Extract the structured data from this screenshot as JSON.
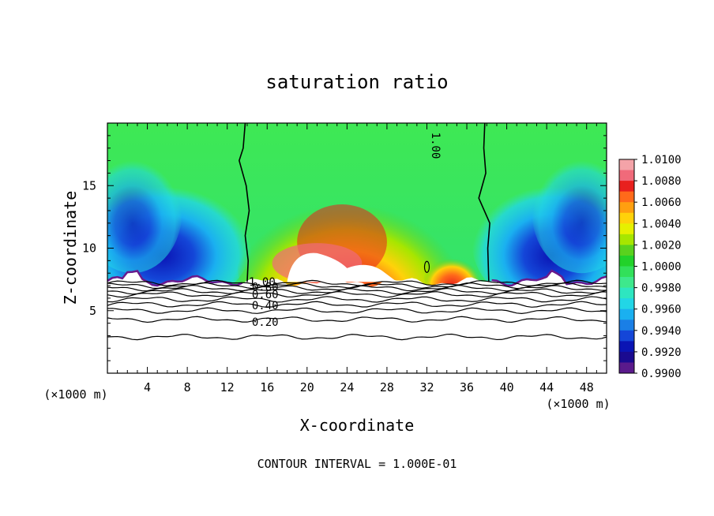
{
  "chart_data": {
    "type": "heatmap",
    "title": "saturation ratio",
    "xlabel": "X-coordinate",
    "ylabel": "Z-coordinate",
    "x_units_left": "(×1000 m)",
    "x_units_right": "(×1000 m)",
    "footer": "CONTOUR INTERVAL = 1.000E-01",
    "xlim": [
      0,
      50
    ],
    "ylim": [
      0,
      20
    ],
    "x_ticks": [
      4,
      8,
      12,
      16,
      20,
      24,
      28,
      32,
      36,
      40,
      44,
      48
    ],
    "y_ticks": [
      5,
      10,
      15
    ],
    "colorbar": {
      "labels": [
        "1.0100",
        "1.0080",
        "1.0060",
        "1.0040",
        "1.0020",
        "1.0000",
        "0.9980",
        "0.9960",
        "0.9940",
        "0.9920",
        "0.9900"
      ],
      "colors": [
        "#f4a3a8",
        "#f06a7a",
        "#e8201e",
        "#ff6a1a",
        "#ff9f10",
        "#ffd20a",
        "#e6f000",
        "#a7e600",
        "#5ad21e",
        "#22d22a",
        "#32e05a",
        "#3ee88c",
        "#2ee6c0",
        "#22d6e6",
        "#1ab0f0",
        "#1a7fe6",
        "#1446d8",
        "#0a14b4",
        "#1a0a90",
        "#5a1a8c"
      ]
    },
    "contour_labels": [
      {
        "text": "1.00",
        "x": 32.5,
        "y": 18.2,
        "rotate": 90
      },
      {
        "text": "1.00",
        "x": 15.5,
        "y": 7.0,
        "rotate": 0
      },
      {
        "text": "0.80",
        "x": 15.8,
        "y": 6.6,
        "rotate": 0
      },
      {
        "text": "0.60",
        "x": 15.8,
        "y": 6.0,
        "rotate": 0
      },
      {
        "text": "0.40",
        "x": 15.8,
        "y": 5.1,
        "rotate": 0
      },
      {
        "text": "0.20",
        "x": 15.8,
        "y": 3.8,
        "rotate": 0
      }
    ],
    "contours_below": [
      {
        "level": 1.0,
        "z": 7.2
      },
      {
        "level": 0.9,
        "z": 7.0
      },
      {
        "level": 0.8,
        "z": 6.8
      },
      {
        "level": 0.7,
        "z": 6.55
      },
      {
        "level": 0.6,
        "z": 6.3
      },
      {
        "level": 0.5,
        "z": 5.9
      },
      {
        "level": 0.4,
        "z": 5.5
      },
      {
        "level": 0.3,
        "z": 5.0
      },
      {
        "level": 0.2,
        "z": 4.3
      },
      {
        "level": 0.1,
        "z": 2.9
      }
    ],
    "ridge_1_00_left": [
      [
        13.8,
        20
      ],
      [
        13.6,
        18
      ],
      [
        13.2,
        17
      ],
      [
        13.9,
        15
      ],
      [
        14.2,
        13
      ],
      [
        13.8,
        11
      ],
      [
        14.1,
        9
      ],
      [
        14.0,
        7.3
      ]
    ],
    "ridge_1_00_right": [
      [
        37.8,
        20
      ],
      [
        37.7,
        18
      ],
      [
        37.9,
        16
      ],
      [
        37.2,
        14
      ],
      [
        38.3,
        12
      ],
      [
        38.1,
        10
      ],
      [
        38.2,
        7.3
      ]
    ],
    "blob": [
      {
        "x": 6,
        "z": 9.5,
        "rx": 6,
        "rz": 3.5,
        "v": 0.9925
      },
      {
        "x": 3,
        "z": 12,
        "rx": 4,
        "rz": 5,
        "v": 0.9955
      },
      {
        "x": 44,
        "z": 10,
        "rx": 6,
        "rz": 4,
        "v": 0.9925
      },
      {
        "x": 46,
        "z": 13,
        "rx": 4,
        "rz": 5,
        "v": 0.9955
      },
      {
        "x": 24,
        "z": 11,
        "rx": 7,
        "rz": 4.5,
        "v": 1.006
      },
      {
        "x": 21,
        "z": 9,
        "rx": 4,
        "rz": 2.5,
        "v": 1.008
      },
      {
        "x": 35,
        "z": 8.5,
        "rx": 2.5,
        "rz": 1.5,
        "v": 1.006
      }
    ]
  }
}
